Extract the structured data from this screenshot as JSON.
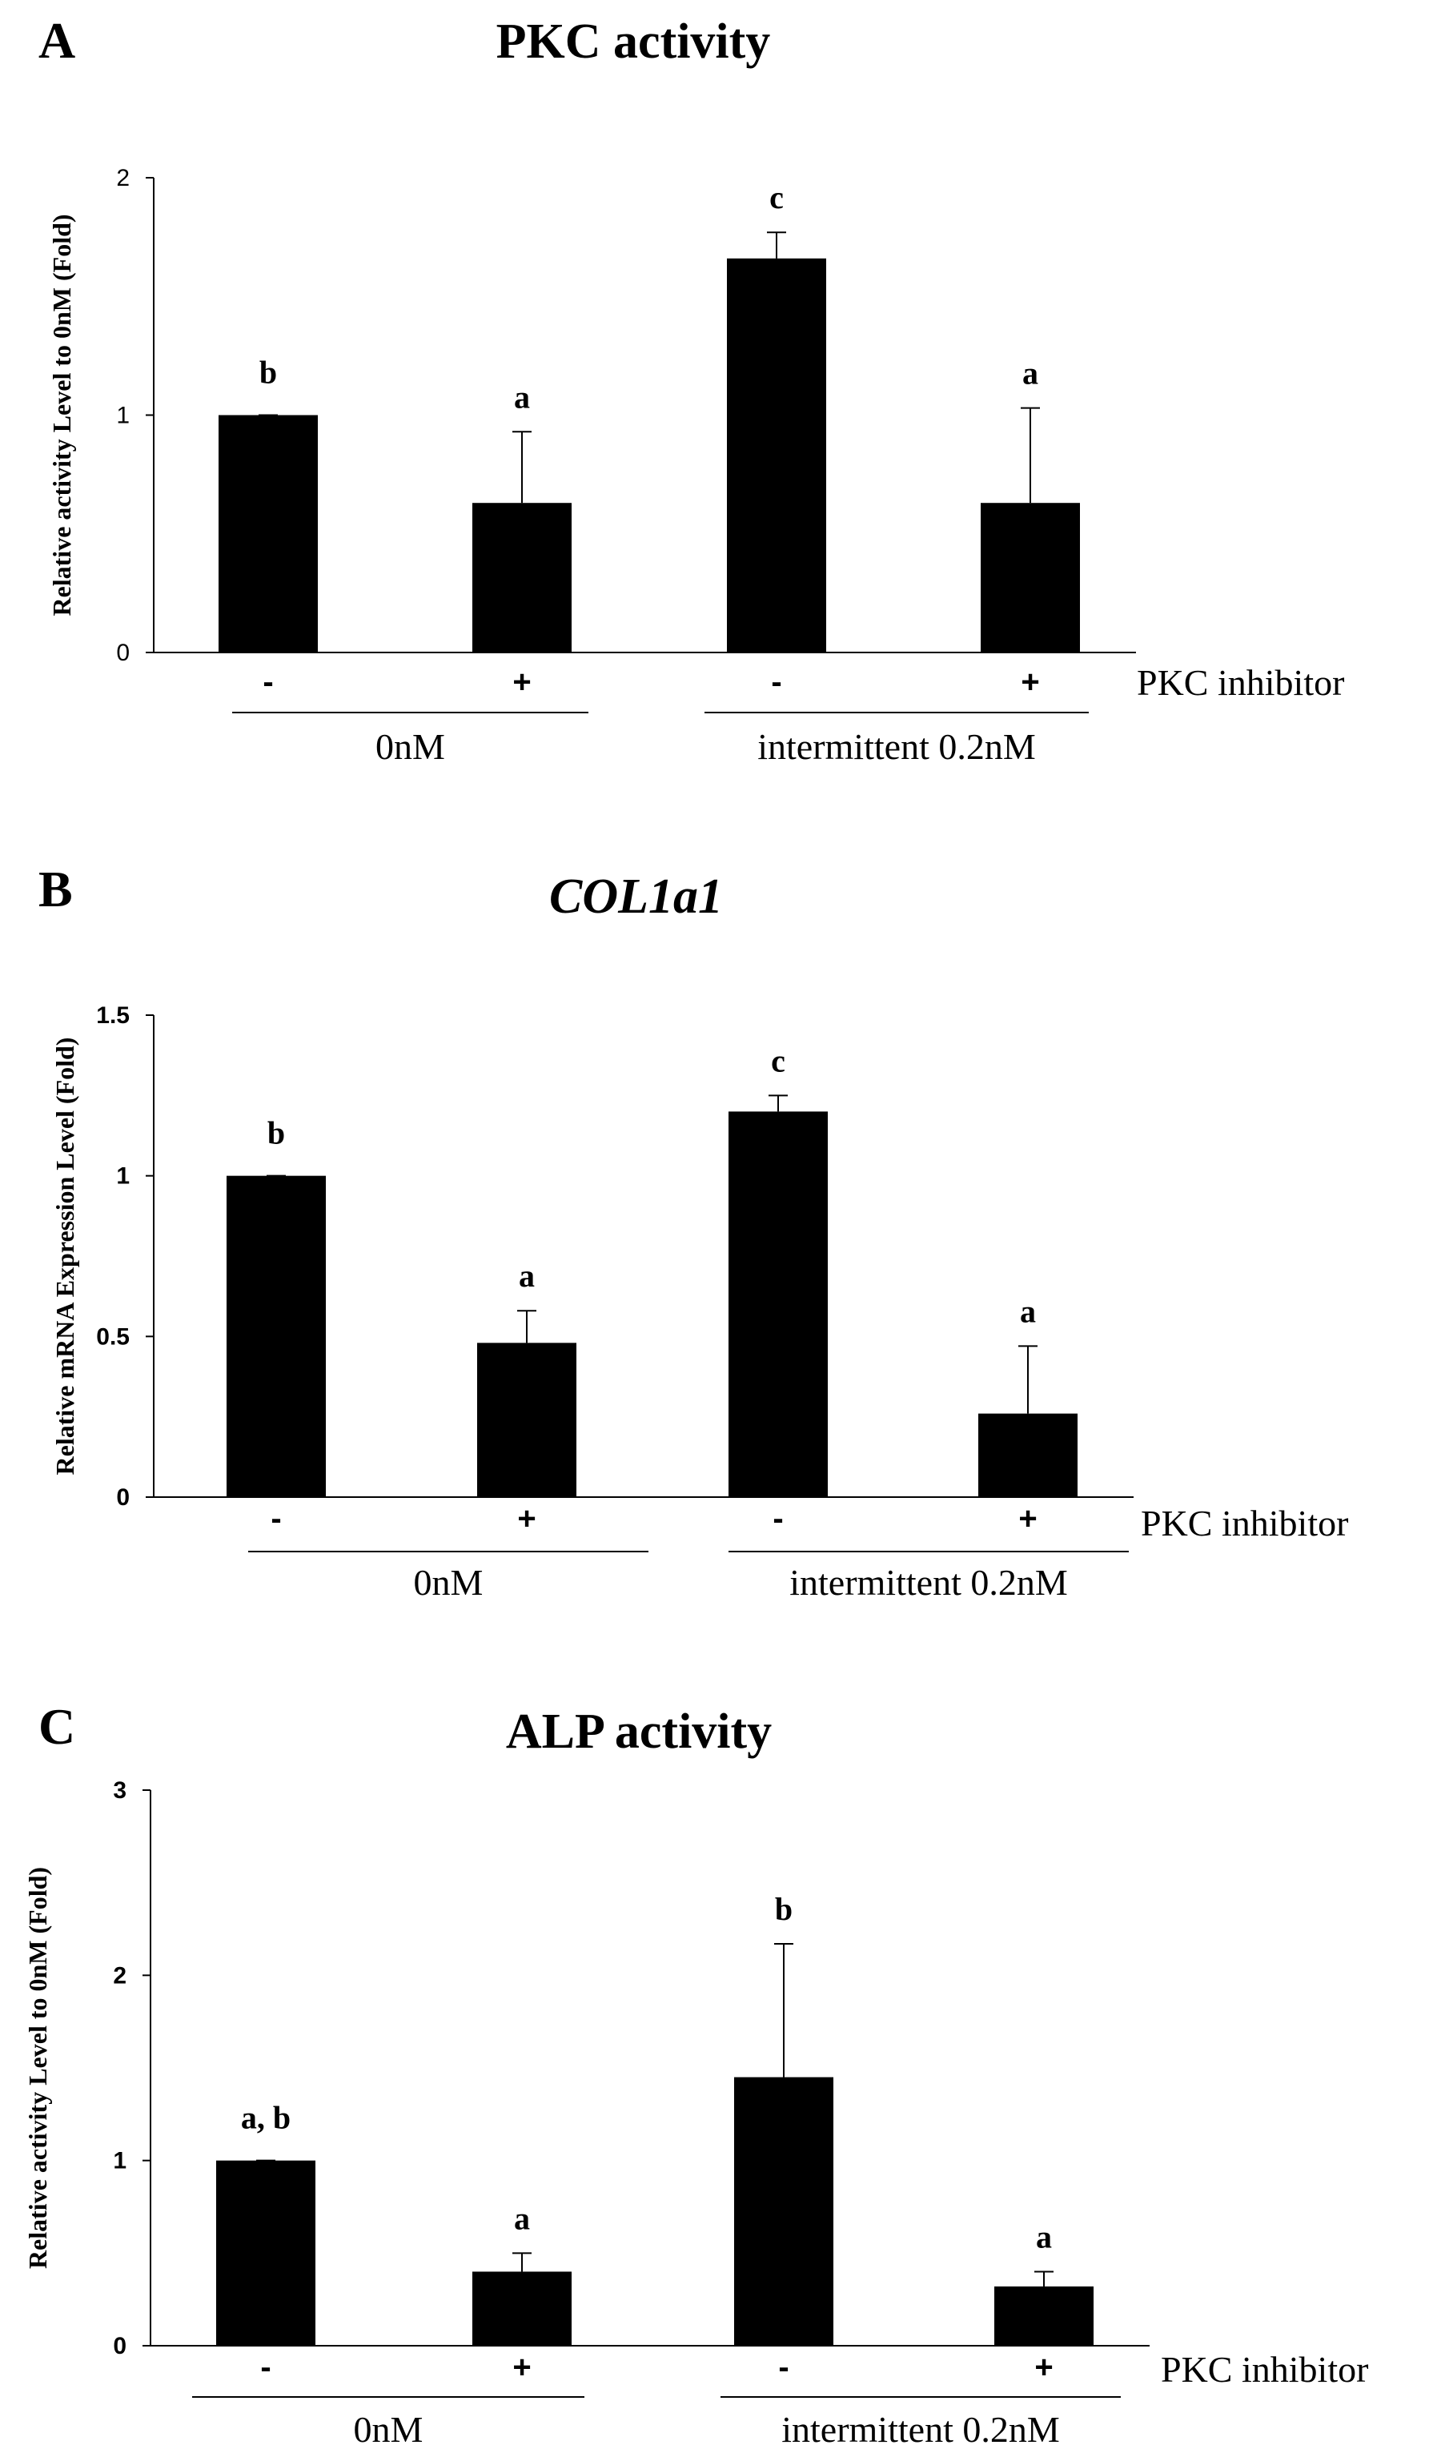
{
  "chart_data": [
    {
      "type": "bar",
      "panel": "A",
      "title": "PKC activity",
      "title_italic": false,
      "ylabel": "Relative activity Level to 0nM (Fold)",
      "ylim": [
        0,
        2
      ],
      "yticks": [
        0,
        1,
        2
      ],
      "ytick_labels": [
        "0",
        "1",
        "2"
      ],
      "categories": [
        "-",
        "+",
        "-",
        "+"
      ],
      "values": [
        1.0,
        0.63,
        1.66,
        0.63
      ],
      "errors": [
        0.0,
        0.3,
        0.11,
        0.4
      ],
      "significance": [
        "b",
        "a",
        "c",
        "a"
      ],
      "groups": [
        {
          "label": "0nM",
          "bars": [
            0,
            1
          ]
        },
        {
          "label": "intermittent  0.2nM",
          "bars": [
            2,
            3
          ]
        }
      ],
      "row_label": "PKC inhibitor",
      "bold_ticks": false
    },
    {
      "type": "bar",
      "panel": "B",
      "title": "COL1a1",
      "title_italic": true,
      "ylabel": "Relative mRNA Expression Level (Fold)",
      "ylim": [
        0,
        1.5
      ],
      "yticks": [
        0,
        0.5,
        1,
        1.5
      ],
      "ytick_labels": [
        "0",
        "0.5",
        "1",
        "1.5"
      ],
      "categories": [
        "-",
        "+",
        "-",
        "+"
      ],
      "values": [
        1.0,
        0.48,
        1.2,
        0.26
      ],
      "errors": [
        0.0,
        0.1,
        0.05,
        0.21
      ],
      "significance": [
        "b",
        "a",
        "c",
        "a"
      ],
      "groups": [
        {
          "label": "0nM",
          "bars": [
            0,
            1
          ]
        },
        {
          "label": "intermittent  0.2nM",
          "bars": [
            2,
            3
          ]
        }
      ],
      "row_label": "PKC inhibitor",
      "bold_ticks": true
    },
    {
      "type": "bar",
      "panel": "C",
      "title": "ALP activity",
      "title_italic": false,
      "ylabel": "Relative activity Level to 0nM (Fold)",
      "ylim": [
        0,
        3
      ],
      "yticks": [
        0,
        1,
        2,
        3
      ],
      "ytick_labels": [
        "0",
        "1",
        "2",
        "3"
      ],
      "categories": [
        "-",
        "+",
        "-",
        "+"
      ],
      "values": [
        1.0,
        0.4,
        1.45,
        0.32
      ],
      "errors": [
        0.0,
        0.1,
        0.72,
        0.08
      ],
      "significance": [
        "a, b",
        "a",
        "b",
        "a"
      ],
      "groups": [
        {
          "label": "0nM",
          "bars": [
            0,
            1
          ]
        },
        {
          "label": "intermittent  0.2nM",
          "bars": [
            2,
            3
          ]
        }
      ],
      "row_label": "PKC inhibitor",
      "bold_ticks": true
    }
  ],
  "colors": {
    "bar": "#000000",
    "axis": "#000000",
    "background": "#ffffff"
  }
}
